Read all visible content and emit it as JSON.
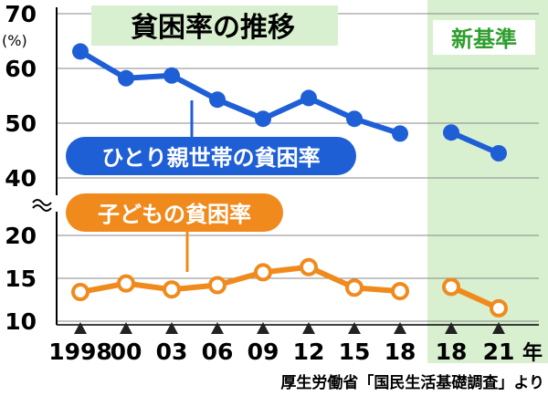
{
  "chart_data": {
    "type": "line",
    "title": "貧困率の推移",
    "new_standard_label": "新基準",
    "ylabel": "(%)",
    "xunit": "年",
    "source": "厚生労働省「国民生活基礎調査」より",
    "categories": [
      "1998",
      "00",
      "03",
      "06",
      "09",
      "12",
      "15",
      "18",
      "18",
      "21"
    ],
    "new_standard_from_index": 8,
    "upper_axis": {
      "ticks": [
        40,
        50,
        60,
        70
      ]
    },
    "lower_axis": {
      "ticks": [
        10,
        15,
        20
      ]
    },
    "series": [
      {
        "name": "ひとり親世帯の貧困率",
        "color": "#1f5fd6",
        "axis": "upper",
        "values": [
          63.1,
          58.2,
          58.7,
          54.3,
          50.8,
          54.6,
          50.8,
          48.1,
          48.3,
          44.5
        ]
      },
      {
        "name": "子どもの貧困率",
        "color": "#f08a1c",
        "axis": "lower",
        "values": [
          13.4,
          14.4,
          13.7,
          14.2,
          15.7,
          16.3,
          13.9,
          13.5,
          14.0,
          11.5
        ]
      }
    ],
    "new_standard_bg": "#d8f0cf",
    "title_bg": "#d8f0cf",
    "grid": true
  }
}
